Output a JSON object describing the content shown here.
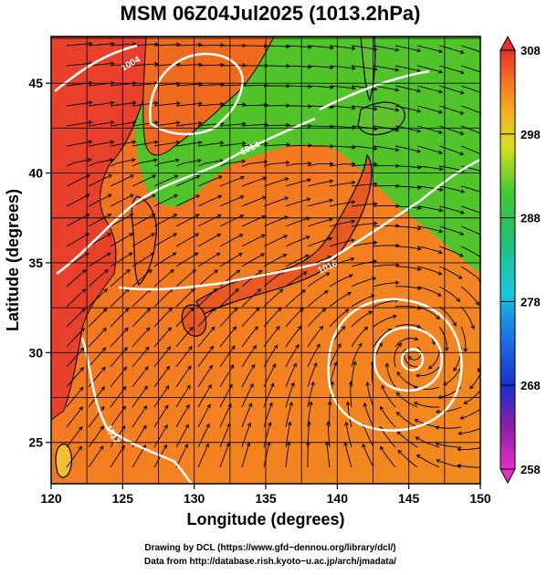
{
  "title": "MSM 06Z04Jul2025 (1013.2hPa)",
  "xlabel": "Longitude (degrees)",
  "ylabel": "Latitude  (degrees)",
  "x_ticks": [
    "120",
    "125",
    "130",
    "135",
    "140",
    "145",
    "150"
  ],
  "y_ticks": [
    "25",
    "30",
    "35",
    "40",
    "45"
  ],
  "colorbar": {
    "ticks": [
      "308",
      "298",
      "288",
      "278",
      "268",
      "258"
    ],
    "min": 258,
    "max": 308
  },
  "contour_labels": [
    "1004",
    "1014",
    "1016",
    "1012"
  ],
  "credits": {
    "line1": "Drawing by DCL (https://www.gfd−dennou.org/library/dcl/)",
    "line2": "Data from http://database.rish.kyoto−u.ac.jp/arch/jmadata/"
  },
  "colors": {
    "warm": "#f06a1e",
    "land_hot": "#e8382a",
    "green": "#46c424",
    "contour": "#ffffff",
    "land_outline": "#000000"
  },
  "map": {
    "lon_range": [
      120,
      150
    ],
    "lat_range": [
      22.7,
      47.6
    ],
    "typhoon_center": [
      145.3,
      30.0
    ]
  }
}
